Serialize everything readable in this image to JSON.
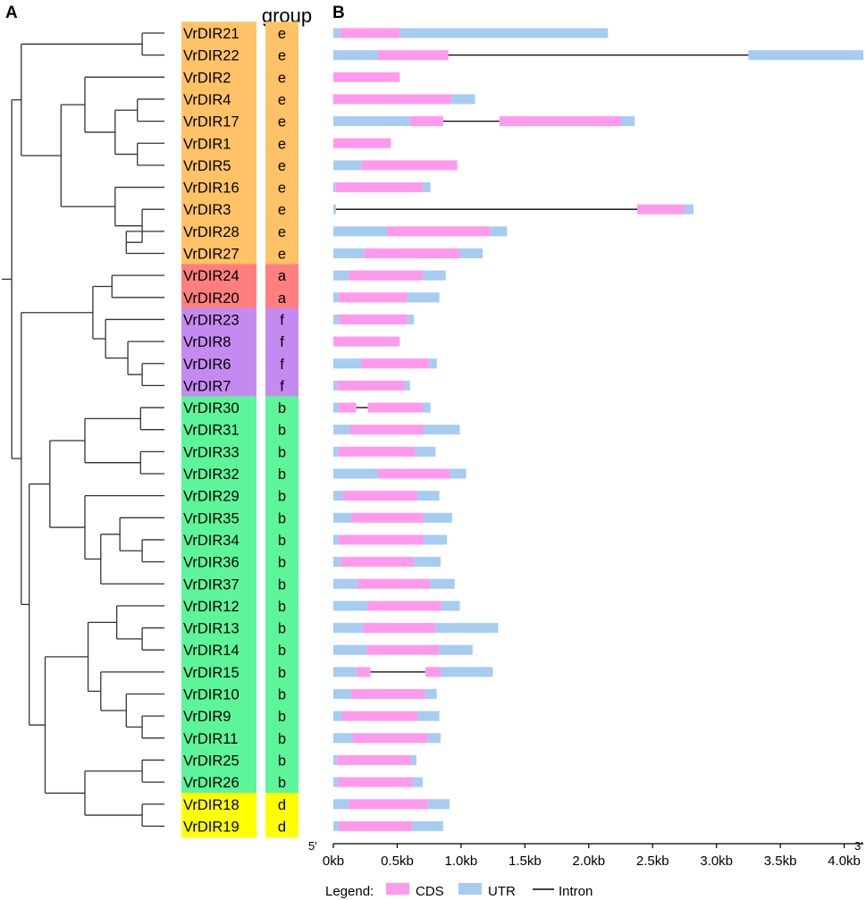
{
  "panels": {
    "a_label": "A",
    "b_label": "B"
  },
  "group_header": "group",
  "colors": {
    "e": "#ffc266",
    "a": "#ff7f7f",
    "f": "#c58af0",
    "b": "#5cf59a",
    "d": "#ffff00",
    "cds": "#ff99ee",
    "utr": "#a6ccf2",
    "intron": "#000000",
    "tree": "#333333"
  },
  "genes": [
    {
      "name": "VrDIR21",
      "group": "e",
      "segs": [
        [
          "u",
          0.0,
          0.05
        ],
        [
          "c",
          0.05,
          0.52
        ],
        [
          "u",
          0.52,
          2.15
        ]
      ]
    },
    {
      "name": "VrDIR22",
      "group": "e",
      "segs": [
        [
          "u",
          0.0,
          0.35
        ],
        [
          "c",
          0.35,
          0.9
        ],
        [
          "i",
          0.9,
          3.25
        ],
        [
          "u",
          3.25,
          4.15
        ]
      ]
    },
    {
      "name": "VrDIR2",
      "group": "e",
      "segs": [
        [
          "c",
          0.0,
          0.52
        ]
      ]
    },
    {
      "name": "VrDIR4",
      "group": "e",
      "segs": [
        [
          "c",
          0.0,
          0.92
        ],
        [
          "u",
          0.92,
          1.11
        ]
      ]
    },
    {
      "name": "VrDIR17",
      "group": "e",
      "segs": [
        [
          "u",
          0.0,
          0.6
        ],
        [
          "c",
          0.6,
          0.86
        ],
        [
          "i",
          0.86,
          1.3
        ],
        [
          "c",
          1.3,
          2.25
        ],
        [
          "u",
          2.25,
          2.36
        ]
      ]
    },
    {
      "name": "VrDIR1",
      "group": "e",
      "segs": [
        [
          "c",
          0.0,
          0.45
        ]
      ]
    },
    {
      "name": "VrDIR5",
      "group": "e",
      "segs": [
        [
          "u",
          0.0,
          0.22
        ],
        [
          "c",
          0.22,
          0.97
        ]
      ]
    },
    {
      "name": "VrDIR16",
      "group": "e",
      "segs": [
        [
          "u",
          0.0,
          0.02
        ],
        [
          "c",
          0.02,
          0.7
        ],
        [
          "u",
          0.7,
          0.76
        ]
      ]
    },
    {
      "name": "VrDIR3",
      "group": "e",
      "segs": [
        [
          "u",
          0.0,
          0.02
        ],
        [
          "i",
          0.02,
          2.38
        ],
        [
          "c",
          2.38,
          2.75
        ],
        [
          "u",
          2.75,
          2.82
        ]
      ]
    },
    {
      "name": "VrDIR28",
      "group": "e",
      "segs": [
        [
          "u",
          0.0,
          0.42
        ],
        [
          "c",
          0.42,
          1.23
        ],
        [
          "u",
          1.23,
          1.36
        ]
      ]
    },
    {
      "name": "VrDIR27",
      "group": "e",
      "segs": [
        [
          "u",
          0.0,
          0.24
        ],
        [
          "c",
          0.24,
          0.99
        ],
        [
          "u",
          0.99,
          1.17
        ]
      ]
    },
    {
      "name": "VrDIR24",
      "group": "a",
      "segs": [
        [
          "u",
          0.0,
          0.12
        ],
        [
          "c",
          0.12,
          0.7
        ],
        [
          "u",
          0.7,
          0.88
        ]
      ]
    },
    {
      "name": "VrDIR20",
      "group": "a",
      "segs": [
        [
          "u",
          0.0,
          0.04
        ],
        [
          "c",
          0.04,
          0.58
        ],
        [
          "u",
          0.58,
          0.83
        ]
      ]
    },
    {
      "name": "VrDIR23",
      "group": "f",
      "segs": [
        [
          "u",
          0.0,
          0.04
        ],
        [
          "c",
          0.04,
          0.58
        ],
        [
          "u",
          0.58,
          0.63
        ]
      ]
    },
    {
      "name": "VrDIR8",
      "group": "f",
      "segs": [
        [
          "c",
          0.0,
          0.52
        ]
      ]
    },
    {
      "name": "VrDIR6",
      "group": "f",
      "segs": [
        [
          "u",
          0.0,
          0.22
        ],
        [
          "c",
          0.22,
          0.75
        ],
        [
          "u",
          0.75,
          0.81
        ]
      ]
    },
    {
      "name": "VrDIR7",
      "group": "f",
      "segs": [
        [
          "u",
          0.0,
          0.03
        ],
        [
          "c",
          0.03,
          0.56
        ],
        [
          "u",
          0.56,
          0.6
        ]
      ]
    },
    {
      "name": "VrDIR30",
      "group": "b",
      "segs": [
        [
          "u",
          0.0,
          0.04
        ],
        [
          "c",
          0.04,
          0.18
        ],
        [
          "i",
          0.18,
          0.27
        ],
        [
          "c",
          0.27,
          0.7
        ],
        [
          "u",
          0.7,
          0.76
        ]
      ]
    },
    {
      "name": "VrDIR31",
      "group": "b",
      "segs": [
        [
          "u",
          0.0,
          0.13
        ],
        [
          "c",
          0.13,
          0.71
        ],
        [
          "u",
          0.71,
          0.99
        ]
      ]
    },
    {
      "name": "VrDIR33",
      "group": "b",
      "segs": [
        [
          "u",
          0.0,
          0.04
        ],
        [
          "c",
          0.04,
          0.64
        ],
        [
          "u",
          0.64,
          0.8
        ]
      ]
    },
    {
      "name": "VrDIR32",
      "group": "b",
      "segs": [
        [
          "u",
          0.0,
          0.35
        ],
        [
          "c",
          0.35,
          0.91
        ],
        [
          "u",
          0.91,
          1.04
        ]
      ]
    },
    {
      "name": "VrDIR29",
      "group": "b",
      "segs": [
        [
          "u",
          0.0,
          0.08
        ],
        [
          "c",
          0.08,
          0.66
        ],
        [
          "u",
          0.66,
          0.83
        ]
      ]
    },
    {
      "name": "VrDIR35",
      "group": "b",
      "segs": [
        [
          "u",
          0.0,
          0.14
        ],
        [
          "c",
          0.14,
          0.71
        ],
        [
          "u",
          0.71,
          0.93
        ]
      ]
    },
    {
      "name": "VrDIR34",
      "group": "b",
      "segs": [
        [
          "u",
          0.0,
          0.04
        ],
        [
          "c",
          0.04,
          0.71
        ],
        [
          "u",
          0.71,
          0.89
        ]
      ]
    },
    {
      "name": "VrDIR36",
      "group": "b",
      "segs": [
        [
          "u",
          0.0,
          0.06
        ],
        [
          "c",
          0.06,
          0.63
        ],
        [
          "u",
          0.63,
          0.84
        ]
      ]
    },
    {
      "name": "VrDIR37",
      "group": "b",
      "segs": [
        [
          "u",
          0.0,
          0.19
        ],
        [
          "c",
          0.19,
          0.76
        ],
        [
          "u",
          0.76,
          0.95
        ]
      ]
    },
    {
      "name": "VrDIR12",
      "group": "b",
      "segs": [
        [
          "u",
          0.0,
          0.27
        ],
        [
          "c",
          0.27,
          0.84
        ],
        [
          "u",
          0.84,
          0.99
        ]
      ]
    },
    {
      "name": "VrDIR13",
      "group": "b",
      "segs": [
        [
          "u",
          0.0,
          0.23
        ],
        [
          "c",
          0.23,
          0.8
        ],
        [
          "u",
          0.8,
          1.29
        ]
      ]
    },
    {
      "name": "VrDIR14",
      "group": "b",
      "segs": [
        [
          "u",
          0.0,
          0.26
        ],
        [
          "c",
          0.26,
          0.83
        ],
        [
          "u",
          0.83,
          1.09
        ]
      ]
    },
    {
      "name": "VrDIR15",
      "group": "b",
      "segs": [
        [
          "u",
          0.0,
          0.18
        ],
        [
          "c",
          0.18,
          0.29
        ],
        [
          "i",
          0.29,
          0.72
        ],
        [
          "c",
          0.72,
          0.84
        ],
        [
          "u",
          0.84,
          1.25
        ]
      ]
    },
    {
      "name": "VrDIR10",
      "group": "b",
      "segs": [
        [
          "u",
          0.0,
          0.14
        ],
        [
          "c",
          0.14,
          0.72
        ],
        [
          "u",
          0.72,
          0.81
        ]
      ]
    },
    {
      "name": "VrDIR9",
      "group": "b",
      "segs": [
        [
          "u",
          0.0,
          0.07
        ],
        [
          "c",
          0.07,
          0.66
        ],
        [
          "u",
          0.66,
          0.83
        ]
      ]
    },
    {
      "name": "VrDIR11",
      "group": "b",
      "segs": [
        [
          "u",
          0.0,
          0.15
        ],
        [
          "c",
          0.15,
          0.74
        ],
        [
          "u",
          0.74,
          0.84
        ]
      ]
    },
    {
      "name": "VrDIR25",
      "group": "b",
      "segs": [
        [
          "u",
          0.0,
          0.03
        ],
        [
          "c",
          0.03,
          0.61
        ],
        [
          "u",
          0.61,
          0.65
        ]
      ]
    },
    {
      "name": "VrDIR26",
      "group": "b",
      "segs": [
        [
          "u",
          0.0,
          0.04
        ],
        [
          "c",
          0.04,
          0.62
        ],
        [
          "u",
          0.62,
          0.7
        ]
      ]
    },
    {
      "name": "VrDIR18",
      "group": "d",
      "segs": [
        [
          "u",
          0.0,
          0.12
        ],
        [
          "c",
          0.12,
          0.74
        ],
        [
          "u",
          0.74,
          0.91
        ]
      ]
    },
    {
      "name": "VrDIR19",
      "group": "d",
      "segs": [
        [
          "u",
          0.0,
          0.04
        ],
        [
          "c",
          0.04,
          0.62
        ],
        [
          "u",
          0.62,
          0.86
        ]
      ]
    }
  ],
  "axis": {
    "min_kb": 0,
    "max_kb": 4.15,
    "ticks": [
      {
        "v": 0,
        "label": "0kb"
      },
      {
        "v": 0.5,
        "label": "0.5kb"
      },
      {
        "v": 1.0,
        "label": "1.0kb"
      },
      {
        "v": 1.5,
        "label": "1.5kb"
      },
      {
        "v": 2.0,
        "label": "2.0kb"
      },
      {
        "v": 2.5,
        "label": "2.5kb"
      },
      {
        "v": 3.0,
        "label": "3.0kb"
      },
      {
        "v": 3.5,
        "label": "3.5kb"
      },
      {
        "v": 4.0,
        "label": "4.0kb"
      }
    ],
    "five_prime": "5'",
    "three_prime": "3'"
  },
  "legend": {
    "title": "Legend:",
    "cds": "CDS",
    "utr": "UTR",
    "intron": "Intron"
  },
  "tree": [
    [
      "VrDIR21",
      "VrDIR22",
      0.86
    ],
    [
      "VrDIR4",
      "VrDIR17",
      0.83
    ],
    [
      "VrDIR1",
      "VrDIR5",
      0.83
    ],
    [
      "n2",
      "n3",
      0.69
    ],
    [
      "VrDIR2",
      "n4",
      0.5
    ],
    [
      "VrDIR28",
      "VrDIR27",
      0.76
    ],
    [
      "VrDIR3",
      "n6",
      0.86
    ],
    [
      "VrDIR16",
      "n7",
      0.69
    ],
    [
      "n5",
      "n8",
      0.35
    ],
    [
      "n1",
      "n9",
      0.1
    ],
    [
      "VrDIR24",
      "VrDIR20",
      0.67
    ],
    [
      "VrDIR6",
      "VrDIR7",
      0.86
    ],
    [
      "VrDIR8",
      "n12",
      0.77
    ],
    [
      "VrDIR23",
      "n13",
      0.63
    ],
    [
      "n11",
      "n14",
      0.55
    ],
    [
      "VrDIR30",
      "VrDIR31",
      0.85
    ],
    [
      "VrDIR33",
      "VrDIR32",
      0.85
    ],
    [
      "n16",
      "n17",
      0.5
    ],
    [
      "VrDIR34",
      "VrDIR36",
      0.86
    ],
    [
      "VrDIR35",
      "n19",
      0.72
    ],
    [
      "n20",
      "VrDIR37",
      0.6
    ],
    [
      "VrDIR29",
      "n21",
      0.5
    ],
    [
      "n18",
      "n22",
      0.28
    ],
    [
      "VrDIR13",
      "VrDIR14",
      0.86
    ],
    [
      "VrDIR12",
      "n24",
      0.7
    ],
    [
      "VrDIR9",
      "VrDIR11",
      0.86
    ],
    [
      "VrDIR10",
      "n26",
      0.76
    ],
    [
      "VrDIR15",
      "n27",
      0.6
    ],
    [
      "n25",
      "n28",
      0.52
    ],
    [
      "VrDIR25",
      "VrDIR26",
      0.86
    ],
    [
      "VrDIR18",
      "VrDIR19",
      0.86
    ],
    [
      "n30",
      "n31",
      0.5
    ],
    [
      "n29",
      "n32",
      0.25
    ],
    [
      "n23",
      "n33",
      0.15
    ],
    [
      "n15",
      "n34",
      0.1
    ],
    [
      "n10",
      "n35",
      0.04
    ]
  ]
}
